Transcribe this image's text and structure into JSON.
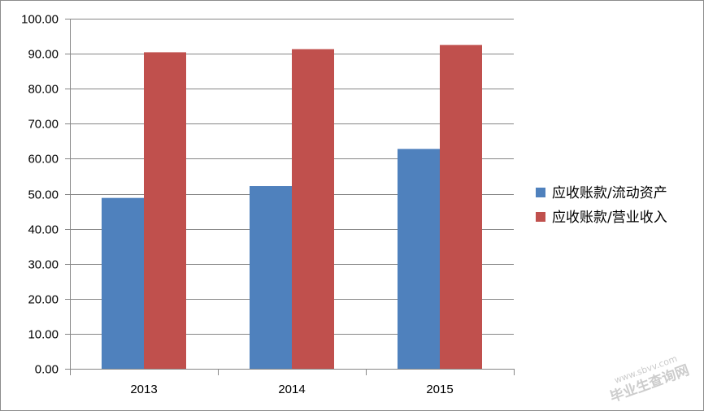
{
  "chart_data": {
    "type": "bar",
    "categories": [
      "2013",
      "2014",
      "2015"
    ],
    "series": [
      {
        "name": "应收账款/流动资产",
        "values": [
          48.8,
          52.2,
          62.8
        ],
        "color": "#4f81bd"
      },
      {
        "name": "应收账款/营业收入",
        "values": [
          90.4,
          91.3,
          92.5
        ],
        "color": "#c0504d"
      }
    ],
    "ylim": [
      0,
      100
    ],
    "yticks": [
      "0.00",
      "10.00",
      "20.00",
      "30.00",
      "40.00",
      "50.00",
      "60.00",
      "70.00",
      "80.00",
      "90.00",
      "100.00"
    ],
    "grid": true,
    "legend_position": "right"
  },
  "watermark": {
    "text": "毕业生查询网",
    "url": "www.sbvv.com"
  }
}
